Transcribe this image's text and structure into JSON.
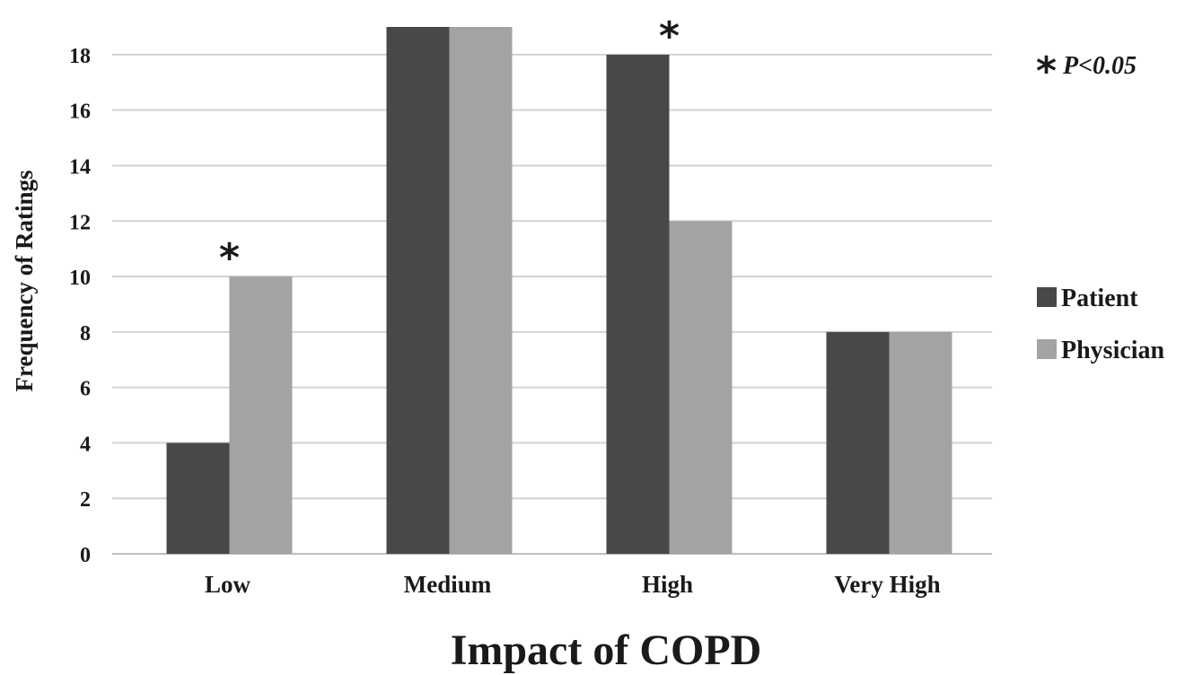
{
  "chart_data": {
    "type": "bar",
    "categories": [
      "Low",
      "Medium",
      "High",
      "Very High"
    ],
    "series": [
      {
        "name": "Patient",
        "values": [
          4,
          19,
          18,
          8
        ],
        "color": "#484848"
      },
      {
        "name": "Physician",
        "values": [
          10,
          19,
          12,
          8
        ],
        "color": "#a3a3a3"
      }
    ],
    "title": "",
    "xlabel": "Impact of COPD",
    "ylabel": "Frequency of Ratings",
    "ylim": [
      0,
      19
    ],
    "yticks": [
      0,
      2,
      4,
      6,
      8,
      10,
      12,
      14,
      16,
      18
    ],
    "grid": true,
    "legend_position": "right",
    "significance": {
      "star": "*",
      "note": "P<0.05",
      "marked_categories": [
        "Low",
        "High"
      ]
    }
  }
}
